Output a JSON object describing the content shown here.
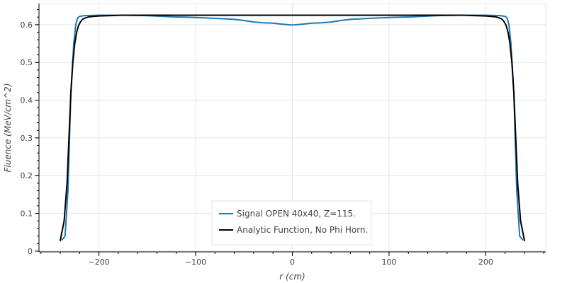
{
  "chart_data": {
    "type": "line",
    "title": "",
    "xlabel": "r (cm)",
    "ylabel": "Fluence (MeV/cm^2)",
    "xlim": [
      -262,
      262
    ],
    "ylim": [
      -0.002,
      0.656
    ],
    "x_ticks": [
      -200,
      -100,
      0,
      100,
      200
    ],
    "x_tick_labels": [
      "−200",
      "−100",
      "0",
      "100",
      "200"
    ],
    "y_ticks": [
      0,
      0.1,
      0.2,
      0.3,
      0.4,
      0.5,
      0.6
    ],
    "y_tick_labels": [
      "0",
      "0.1",
      "0.2",
      "0.3",
      "0.4",
      "0.5",
      "0.6"
    ],
    "grid": true,
    "legend_position": "bottom-center",
    "series": [
      {
        "name": "Signal OPEN 40x40, Z=115.",
        "color": "#1f77b4",
        "x": [
          -238,
          -235,
          -232,
          -229,
          -226,
          -224,
          -222,
          -220,
          -215,
          -200,
          -175,
          -150,
          -125,
          -100,
          -75,
          -60,
          -50,
          -40,
          -30,
          -20,
          -10,
          0,
          10,
          20,
          30,
          40,
          50,
          60,
          75,
          100,
          125,
          150,
          175,
          200,
          215,
          220,
          222,
          224,
          226,
          229,
          232,
          235,
          238
        ],
        "y": [
          0.03,
          0.04,
          0.16,
          0.42,
          0.55,
          0.6,
          0.618,
          0.622,
          0.624,
          0.625,
          0.625,
          0.624,
          0.621,
          0.619,
          0.616,
          0.614,
          0.611,
          0.607,
          0.605,
          0.604,
          0.601,
          0.599,
          0.601,
          0.604,
          0.605,
          0.607,
          0.611,
          0.614,
          0.616,
          0.619,
          0.621,
          0.624,
          0.625,
          0.625,
          0.624,
          0.622,
          0.618,
          0.6,
          0.55,
          0.42,
          0.16,
          0.04,
          0.03
        ]
      },
      {
        "name": "Analytic Function, No Phi Horn.",
        "color": "#000000",
        "x": [
          -240,
          -236,
          -233,
          -231,
          -229,
          -227,
          -225,
          -223,
          -221,
          -219,
          -217,
          -214,
          -210,
          -200,
          -175,
          0,
          175,
          200,
          210,
          214,
          217,
          219,
          221,
          223,
          225,
          227,
          229,
          231,
          233,
          236,
          240
        ],
        "y": [
          0.028,
          0.08,
          0.18,
          0.3,
          0.42,
          0.5,
          0.55,
          0.58,
          0.598,
          0.608,
          0.614,
          0.618,
          0.621,
          0.623,
          0.625,
          0.625,
          0.625,
          0.623,
          0.621,
          0.618,
          0.614,
          0.608,
          0.598,
          0.58,
          0.55,
          0.5,
          0.42,
          0.3,
          0.18,
          0.08,
          0.028
        ]
      }
    ]
  }
}
